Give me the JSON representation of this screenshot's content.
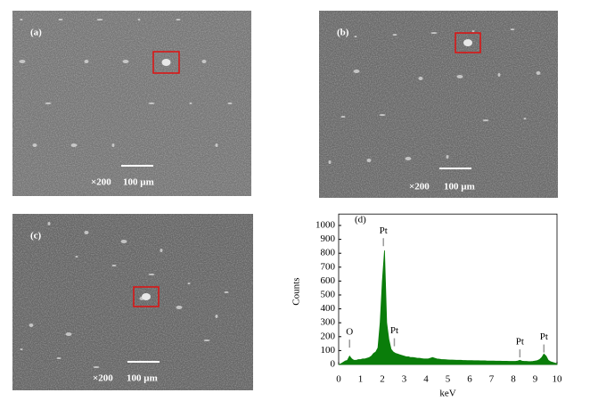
{
  "panels": [
    {
      "label": "(a)",
      "magnification": "×200",
      "scale_bar": "100 µm"
    },
    {
      "label": "(b)",
      "magnification": "×200",
      "scale_bar": "100 µm"
    },
    {
      "label": "(c)",
      "magnification": "×200",
      "scale_bar": "100 µm"
    }
  ],
  "chart_data": {
    "type": "area",
    "panel_label": "(d)",
    "x_label": "keV",
    "y_label": "Counts",
    "color": "#0a7d0a",
    "x": [
      0,
      0.1,
      0.2,
      0.3,
      0.4,
      0.5,
      0.6,
      0.7,
      0.8,
      0.9,
      1,
      1.1,
      1.2,
      1.3,
      1.4,
      1.5,
      1.6,
      1.7,
      1.8,
      1.9,
      2,
      2.1,
      2.2,
      2.3,
      2.4,
      2.5,
      2.6,
      2.7,
      2.8,
      2.9,
      3,
      3.1,
      3.2,
      3.3,
      3.4,
      3.5,
      3.6,
      3.7,
      3.8,
      3.9,
      4,
      4.1,
      4.2,
      4.3,
      4.4,
      4.5,
      4.6,
      4.7,
      4.8,
      4.9,
      5,
      5.1,
      5.2,
      5.3,
      5.4,
      5.5,
      5.6,
      5.7,
      5.8,
      5.9,
      6,
      6.1,
      6.2,
      6.3,
      6.4,
      6.5,
      6.6,
      6.7,
      6.8,
      6.9,
      7,
      7.1,
      7.2,
      7.3,
      7.4,
      7.5,
      7.6,
      7.7,
      7.8,
      7.9,
      8,
      8.1,
      8.2,
      8.3,
      8.4,
      8.5,
      8.6,
      8.7,
      8.8,
      8.9,
      9,
      9.1,
      9.2,
      9.3,
      9.4,
      9.5,
      9.6,
      9.7,
      9.8,
      9.9,
      10
    ],
    "values": [
      0,
      5,
      15,
      25,
      30,
      60,
      40,
      30,
      30,
      35,
      35,
      40,
      40,
      45,
      50,
      60,
      80,
      90,
      120,
      300,
      600,
      820,
      300,
      180,
      110,
      90,
      80,
      75,
      70,
      65,
      60,
      55,
      55,
      50,
      50,
      48,
      45,
      45,
      42,
      40,
      40,
      40,
      45,
      50,
      45,
      40,
      38,
      36,
      35,
      34,
      33,
      32,
      32,
      31,
      30,
      30,
      30,
      29,
      29,
      28,
      28,
      28,
      27,
      27,
      27,
      26,
      26,
      26,
      25,
      25,
      25,
      25,
      24,
      24,
      24,
      23,
      23,
      23,
      22,
      22,
      22,
      22,
      25,
      30,
      24,
      22,
      22,
      21,
      21,
      22,
      25,
      28,
      35,
      50,
      75,
      60,
      30,
      20,
      15,
      10,
      5
    ],
    "xlim": [
      0,
      10
    ],
    "xticks": [
      0,
      1,
      2,
      3,
      4,
      5,
      6,
      7,
      8,
      9,
      10
    ],
    "ylim": [
      0,
      1050
    ],
    "yticks": [
      0,
      100,
      200,
      300,
      400,
      500,
      600,
      700,
      800,
      900,
      1000
    ],
    "annotations": [
      {
        "text": "O",
        "x": 0.5,
        "y": 230
      },
      {
        "text": "Pt",
        "x": 2.05,
        "y": 960
      },
      {
        "text": "Pt",
        "x": 2.55,
        "y": 240
      },
      {
        "text": "Pt",
        "x": 8.3,
        "y": 160
      },
      {
        "text": "Pt",
        "x": 9.4,
        "y": 195
      }
    ]
  }
}
